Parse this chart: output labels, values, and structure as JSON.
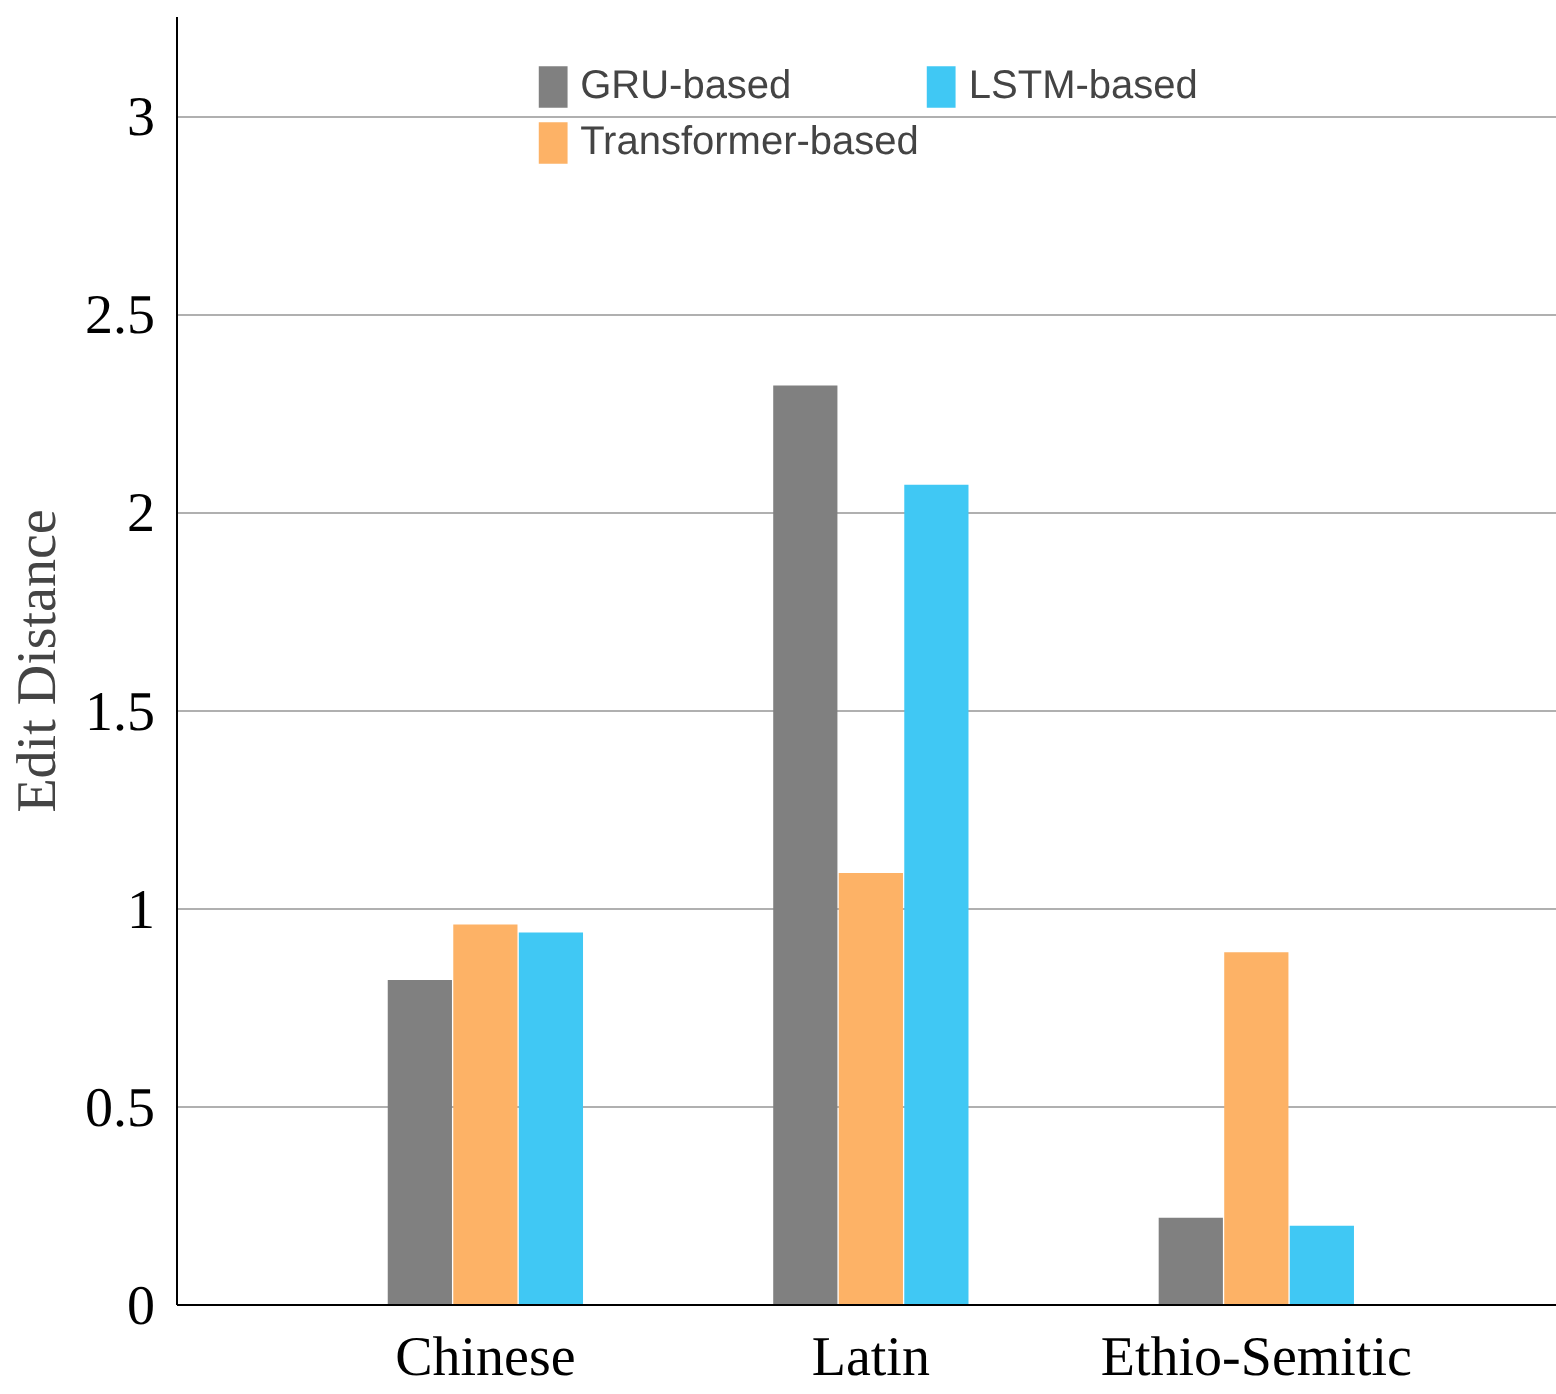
{
  "chart_data": {
    "type": "bar",
    "ylabel": "Edit Distance",
    "categories": [
      "Chinese",
      "Latin",
      "Ethio-Semitic"
    ],
    "series": [
      {
        "name": "GRU-based",
        "color": "#808080",
        "values": [
          0.82,
          2.32,
          0.22
        ]
      },
      {
        "name": "Transformer-based",
        "color": "#fdb266",
        "values": [
          0.96,
          1.09,
          0.89
        ]
      },
      {
        "name": "LSTM-based",
        "color": "#40c8f4",
        "values": [
          0.94,
          2.07,
          0.2
        ]
      }
    ],
    "ylim": [
      0,
      3.25
    ],
    "yticks": [
      0,
      0.5,
      1,
      1.5,
      2,
      2.5,
      3
    ],
    "grid": "y",
    "legend": "top"
  }
}
